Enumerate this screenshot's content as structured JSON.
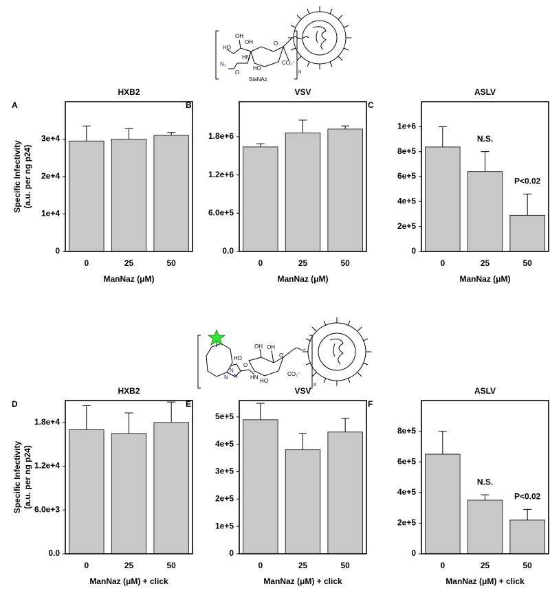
{
  "chart_data": [
    {
      "type": "bar",
      "panel": "A",
      "title": "HXB2",
      "ylabel": [
        "Specific Infectivity",
        "(a.u. per ng p24)"
      ],
      "xlabel": "ManNaz (μM)",
      "categories": [
        "0",
        "25",
        "50"
      ],
      "values": [
        29500,
        30000,
        31000
      ],
      "errors": [
        4000,
        2800,
        800
      ],
      "color": "#c8c8c8",
      "ylim": [
        0,
        40000
      ],
      "yticks": [
        0,
        {
          "value": 10000,
          "label": "1e+4"
        },
        {
          "value": 20000,
          "label": "2e+4"
        },
        {
          "value": 30000,
          "label": "3e+4"
        }
      ]
    },
    {
      "type": "bar",
      "panel": "B",
      "title": "VSV",
      "xlabel": "ManNaz (μM)",
      "categories": [
        "0",
        "25",
        "50"
      ],
      "values": [
        1640000,
        1860000,
        1920000
      ],
      "errors": [
        50000,
        200000,
        50000
      ],
      "color": "#c8c8c8",
      "ylim": [
        0,
        2350000
      ],
      "yticks": [
        {
          "value": 0,
          "label": "0.0"
        },
        {
          "value": 600000,
          "label": "6.0e+5"
        },
        {
          "value": 1200000,
          "label": "1.2e+6"
        },
        {
          "value": 1800000,
          "label": "1.8e+6"
        }
      ]
    },
    {
      "type": "bar",
      "panel": "C",
      "title": "ASLV",
      "xlabel": "ManNaz (μM)",
      "annotations": [
        "N.S.",
        "P<0.02"
      ],
      "categories": [
        "0",
        "25",
        "50"
      ],
      "values": [
        837000,
        640000,
        290000
      ],
      "errors": [
        163000,
        160000,
        170000
      ],
      "color": "#c8c8c8",
      "ylim": [
        0,
        1200000
      ],
      "yticks": [
        0,
        {
          "value": 200000,
          "label": "2e+5"
        },
        {
          "value": 400000,
          "label": "4e+5"
        },
        {
          "value": 600000,
          "label": "6e+5"
        },
        {
          "value": 800000,
          "label": "8e+5"
        },
        {
          "value": 1000000,
          "label": "1e+6"
        }
      ]
    },
    {
      "type": "bar",
      "panel": "D",
      "title": "HXB2",
      "ylabel": [
        "Specific Infectivity",
        "(a.u. per ng p24)"
      ],
      "xlabel": "ManNaz (μM) + click",
      "categories": [
        "0",
        "25",
        "50"
      ],
      "values": [
        17000,
        16500,
        18000
      ],
      "errors": [
        3300,
        2800,
        2800
      ],
      "color": "#c8c8c8",
      "ylim": [
        0,
        21000
      ],
      "yticks": [
        {
          "value": 0,
          "label": "0.0"
        },
        {
          "value": 6000,
          "label": "6.0e+3"
        },
        {
          "value": 12000,
          "label": "1.2e+4"
        },
        {
          "value": 18000,
          "label": "1.8e+4"
        }
      ]
    },
    {
      "type": "bar",
      "panel": "E",
      "title": "VSV",
      "xlabel": "ManNaz (μM) + click",
      "categories": [
        "0",
        "25",
        "50"
      ],
      "values": [
        490000,
        380000,
        445000
      ],
      "errors": [
        60000,
        60000,
        50000
      ],
      "color": "#c8c8c8",
      "ylim": [
        0,
        560000
      ],
      "yticks": [
        0,
        {
          "value": 100000,
          "label": "1e+5"
        },
        {
          "value": 200000,
          "label": "2e+5"
        },
        {
          "value": 300000,
          "label": "3e+5"
        },
        {
          "value": 400000,
          "label": "4e+5"
        },
        {
          "value": 500000,
          "label": "5e+5"
        }
      ]
    },
    {
      "type": "bar",
      "panel": "F",
      "title": "ASLV",
      "xlabel": "ManNaz (μM) + click",
      "annotations": [
        "N.S.",
        "P<0.02"
      ],
      "categories": [
        "0",
        "25",
        "50"
      ],
      "values": [
        650000,
        350000,
        220000
      ],
      "errors": [
        150000,
        35000,
        70000
      ],
      "color": "#c8c8c8",
      "ylim": [
        0,
        1000000
      ],
      "yticks": [
        0,
        {
          "value": 200000,
          "label": "2e+5"
        },
        {
          "value": 400000,
          "label": "4e+5"
        },
        {
          "value": 600000,
          "label": "6e+5"
        },
        {
          "value": 800000,
          "label": "8e+5"
        }
      ]
    }
  ],
  "structures": {
    "top": {
      "name": "SiaNAz",
      "repeat": "n",
      "atoms": [
        "HO",
        "OH",
        "OH",
        "N₃",
        "HN",
        "O",
        "HO",
        "O",
        "CO₂⁻"
      ]
    },
    "bottom": {
      "repeat": "n",
      "atoms": [
        "HO",
        "OH",
        "OH",
        "N",
        "N",
        "N",
        "HN",
        "O",
        "HO",
        "O",
        "CO₂⁻"
      ]
    }
  }
}
